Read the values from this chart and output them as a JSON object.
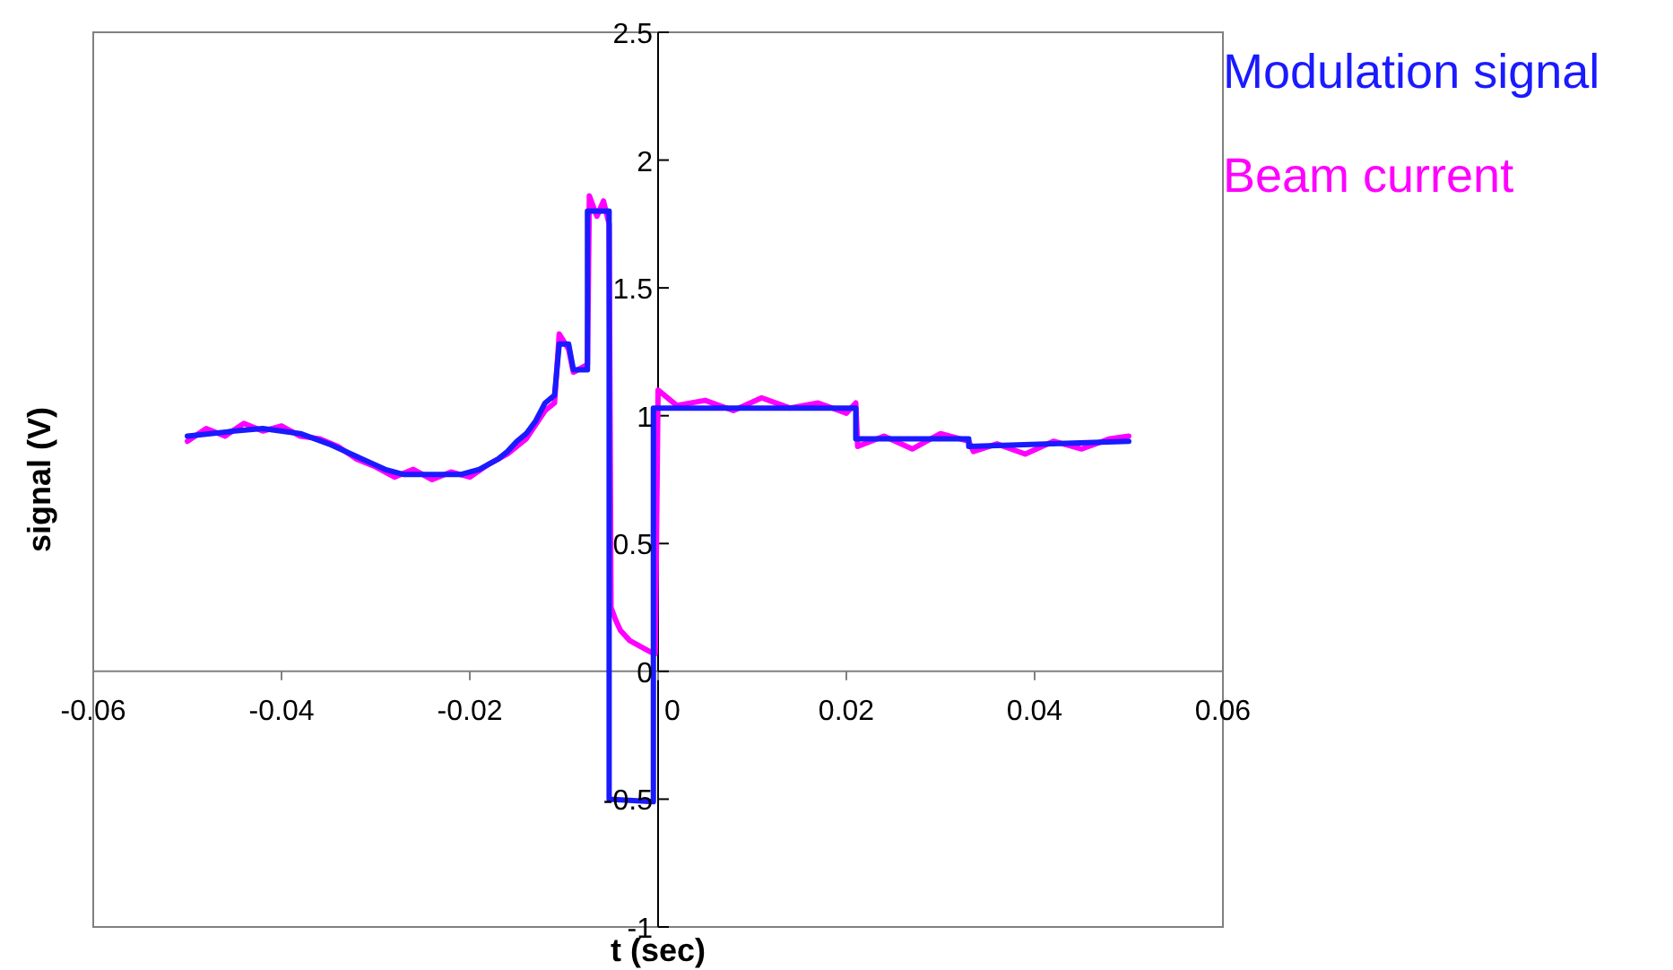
{
  "chart_data": {
    "type": "line",
    "xlabel": "t (sec)",
    "ylabel": "signal (V)",
    "xlim": [
      -0.06,
      0.06
    ],
    "xticks": [
      -0.06,
      -0.04,
      -0.02,
      0,
      0.02,
      0.04,
      0.06
    ],
    "ylim": [
      -1,
      2.5
    ],
    "yticks": [
      -1,
      -0.5,
      0,
      0.5,
      1,
      1.5,
      2,
      2.5
    ],
    "grid": false,
    "legend": "top right",
    "marker": "none",
    "series": [
      {
        "name": "Modulation signal",
        "color": "#1a1aff",
        "x": [
          -0.05,
          -0.045,
          -0.042,
          -0.038,
          -0.035,
          -0.032,
          -0.029,
          -0.027,
          -0.024,
          -0.021,
          -0.019,
          -0.017,
          -0.016,
          -0.015,
          -0.014,
          -0.013,
          -0.012,
          -0.011,
          -0.0105,
          -0.0095,
          -0.009,
          -0.0075,
          -0.0075,
          -0.0052,
          -0.0052,
          -0.0005,
          -0.0005,
          0.021,
          0.021,
          0.033,
          0.033,
          0.05
        ],
        "values": [
          0.92,
          0.94,
          0.95,
          0.93,
          0.89,
          0.84,
          0.79,
          0.77,
          0.77,
          0.77,
          0.79,
          0.83,
          0.86,
          0.9,
          0.93,
          0.98,
          1.05,
          1.08,
          1.28,
          1.28,
          1.18,
          1.18,
          1.8,
          1.8,
          -0.5,
          -0.51,
          1.03,
          1.03,
          0.91,
          0.91,
          0.88,
          0.9
        ]
      },
      {
        "name": "Beam current",
        "color": "#ff00ff",
        "x": [
          -0.05,
          -0.048,
          -0.046,
          -0.044,
          -0.042,
          -0.04,
          -0.038,
          -0.036,
          -0.034,
          -0.032,
          -0.03,
          -0.028,
          -0.026,
          -0.024,
          -0.022,
          -0.02,
          -0.018,
          -0.016,
          -0.014,
          -0.012,
          -0.011,
          -0.0105,
          -0.0095,
          -0.009,
          -0.0075,
          -0.0073,
          -0.0065,
          -0.0058,
          -0.0052,
          -0.005,
          -0.0045,
          -0.004,
          -0.003,
          -0.002,
          -0.001,
          -0.0005,
          -0.0003,
          0,
          0.002,
          0.005,
          0.008,
          0.011,
          0.014,
          0.017,
          0.02,
          0.021,
          0.0212,
          0.024,
          0.027,
          0.03,
          0.033,
          0.0335,
          0.036,
          0.039,
          0.042,
          0.045,
          0.048,
          0.05
        ],
        "values": [
          0.9,
          0.95,
          0.92,
          0.97,
          0.94,
          0.96,
          0.92,
          0.91,
          0.88,
          0.83,
          0.8,
          0.76,
          0.79,
          0.75,
          0.78,
          0.76,
          0.81,
          0.85,
          0.91,
          1.02,
          1.05,
          1.32,
          1.26,
          1.17,
          1.2,
          1.86,
          1.78,
          1.84,
          1.75,
          0.25,
          0.2,
          0.16,
          0.12,
          0.1,
          0.08,
          0.07,
          0.07,
          1.1,
          1.04,
          1.06,
          1.02,
          1.07,
          1.03,
          1.05,
          1.01,
          1.05,
          0.88,
          0.92,
          0.87,
          0.93,
          0.9,
          0.86,
          0.89,
          0.85,
          0.9,
          0.87,
          0.91,
          0.92
        ]
      }
    ]
  }
}
